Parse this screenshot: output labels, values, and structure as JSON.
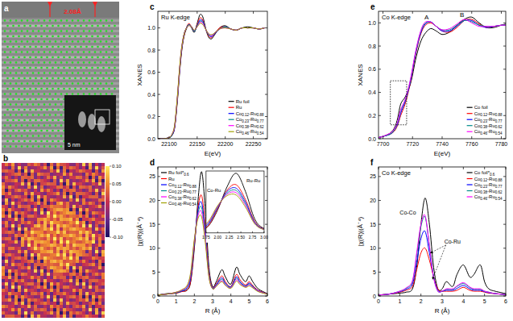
{
  "chart_data": [
    {
      "label": "c",
      "type": "line",
      "title": "Ru K-edge",
      "x_label": "E(eV)",
      "y_label": "XANES",
      "xlim": [
        22080,
        22275
      ],
      "ylim": [
        0,
        1.15
      ],
      "xticks": [
        22100,
        22150,
        22200,
        22250
      ],
      "yticks": [
        {
          "value": 0,
          "label": "0.0"
        },
        0.2,
        0.4,
        0.6,
        0.8,
        {
          "value": 1,
          "label": "1.0"
        }
      ],
      "legend": "lower right",
      "x": [
        22080,
        22090,
        22100,
        22105,
        22110,
        22115,
        22118,
        22121,
        22124,
        22127,
        22130,
        22135,
        22140,
        22145,
        22150,
        22155,
        22160,
        22165,
        22170,
        22175,
        22180,
        22190,
        22200,
        22210,
        22220,
        22230,
        22240,
        22250,
        22260,
        22270
      ],
      "series": [
        {
          "name": "Ru foil",
          "color": "#000000",
          "values": [
            0,
            0,
            0.01,
            0.03,
            0.1,
            0.35,
            0.55,
            0.72,
            0.85,
            0.93,
            0.98,
            1.03,
            1.0,
            0.96,
            1.04,
            1.12,
            1.1,
            1.0,
            0.92,
            0.9,
            0.93,
            1.0,
            1.02,
            0.99,
            0.98,
            1.0,
            1.01,
            1.0,
            0.99,
            1.0
          ]
        },
        {
          "name": "Ru",
          "color": "#ff0000",
          "values": [
            0,
            0,
            0.01,
            0.03,
            0.11,
            0.37,
            0.57,
            0.74,
            0.86,
            0.94,
            0.99,
            1.04,
            1.01,
            0.97,
            1.03,
            1.09,
            1.07,
            0.99,
            0.93,
            0.91,
            0.94,
            1.0,
            1.01,
            0.99,
            0.98,
            1.0,
            1.0,
            1.0,
            0.99,
            1.0
          ]
        },
        {
          "name": "Co0.12-Ru0.88",
          "color": "#0000ff",
          "values": [
            0,
            0,
            0.01,
            0.03,
            0.11,
            0.38,
            0.58,
            0.75,
            0.87,
            0.95,
            0.99,
            1.03,
            1.01,
            0.97,
            1.02,
            1.07,
            1.06,
            0.99,
            0.94,
            0.92,
            0.94,
            0.99,
            1.01,
            0.99,
            0.98,
            1.0,
            1.0,
            1.0,
            0.99,
            1.0
          ]
        },
        {
          "name": "Co0.23-Ru0.77",
          "color": "#008b8b",
          "values": [
            0,
            0,
            0.01,
            0.03,
            0.12,
            0.38,
            0.58,
            0.75,
            0.87,
            0.95,
            0.99,
            1.03,
            1.01,
            0.97,
            1.02,
            1.06,
            1.05,
            0.99,
            0.94,
            0.93,
            0.95,
            0.99,
            1.01,
            0.99,
            0.98,
            1.0,
            1.0,
            1.0,
            0.99,
            1.0
          ]
        },
        {
          "name": "Co0.38-Ru0.62",
          "color": "#ff00ff",
          "values": [
            0,
            0,
            0.01,
            0.04,
            0.12,
            0.39,
            0.59,
            0.76,
            0.88,
            0.95,
            0.99,
            1.02,
            1.01,
            0.98,
            1.01,
            1.05,
            1.04,
            0.99,
            0.95,
            0.93,
            0.95,
            0.99,
            1.0,
            0.99,
            0.98,
            1.0,
            1.0,
            1.0,
            0.99,
            1.0
          ]
        },
        {
          "name": "Co0.46-Ru0.54",
          "color": "#a0a000",
          "values": [
            0,
            0,
            0.01,
            0.04,
            0.13,
            0.4,
            0.6,
            0.77,
            0.88,
            0.95,
            0.99,
            1.02,
            1.01,
            0.98,
            1.01,
            1.04,
            1.03,
            0.99,
            0.95,
            0.94,
            0.95,
            0.99,
            1.0,
            0.99,
            0.98,
            1.0,
            1.0,
            1.0,
            0.99,
            1.0
          ]
        }
      ]
    },
    {
      "label": "d",
      "type": "line",
      "x_label": "R (Å)",
      "y_label": "|χ(R)|(Å⁻⁴)",
      "xlim": [
        0,
        6
      ],
      "ylim": [
        0,
        27
      ],
      "xticks": [
        0,
        1,
        2,
        3,
        4,
        5,
        6
      ],
      "yticks": [
        0,
        5,
        10,
        15,
        20,
        25
      ],
      "legend": "upper left",
      "x": [
        0,
        0.5,
        1.0,
        1.3,
        1.6,
        1.8,
        2.0,
        2.2,
        2.4,
        2.6,
        2.8,
        3.0,
        3.2,
        3.5,
        3.7,
        4.0,
        4.3,
        4.5,
        4.8,
        5.0,
        5.2,
        5.5,
        6.0
      ],
      "series": [
        {
          "name": "Ru foil*0.6",
          "color": "#000000",
          "values": [
            0.2,
            0.5,
            0.6,
            1.0,
            1.2,
            3.0,
            10.0,
            20.0,
            26.0,
            18.0,
            6.0,
            2.0,
            3.0,
            5.5,
            4.0,
            2.5,
            6.0,
            4.5,
            3.0,
            4.2,
            3.0,
            1.5,
            0.5
          ]
        },
        {
          "name": "Ru",
          "color": "#ff0000",
          "values": [
            0.2,
            0.4,
            0.6,
            0.9,
            1.3,
            3.2,
            10.5,
            18.5,
            21.0,
            14.5,
            5.0,
            1.8,
            2.6,
            4.2,
            3.0,
            2.0,
            4.5,
            3.4,
            2.3,
            3.0,
            2.2,
            1.2,
            0.4
          ]
        },
        {
          "name": "Co0.12-Ru0.88",
          "color": "#0000ff",
          "values": [
            0.2,
            0.4,
            0.7,
            1.0,
            1.6,
            3.8,
            11.0,
            18.0,
            19.5,
            13.5,
            4.6,
            1.7,
            2.4,
            3.8,
            2.7,
            1.9,
            4.0,
            3.0,
            2.1,
            2.7,
            2.0,
            1.1,
            0.4
          ]
        },
        {
          "name": "Co0.23-Ru0.77",
          "color": "#008b8b",
          "values": [
            0.2,
            0.4,
            0.7,
            1.1,
            1.8,
            4.2,
            11.3,
            17.3,
            18.5,
            12.7,
            4.3,
            1.6,
            2.2,
            3.5,
            2.5,
            1.8,
            3.7,
            2.8,
            2.0,
            2.5,
            1.9,
            1.0,
            0.4
          ]
        },
        {
          "name": "Co0.38-Ru0.62",
          "color": "#ff00ff",
          "values": [
            0.2,
            0.4,
            0.8,
            1.2,
            2.0,
            4.6,
            11.6,
            16.8,
            17.5,
            12.0,
            4.1,
            1.5,
            2.1,
            3.2,
            2.3,
            1.7,
            3.4,
            2.6,
            1.9,
            2.3,
            1.8,
            1.0,
            0.4
          ]
        },
        {
          "name": "Co0.46-Ru0.54",
          "color": "#a0a000",
          "values": [
            0.2,
            0.4,
            0.8,
            1.3,
            2.2,
            5.0,
            11.9,
            16.2,
            16.5,
            11.2,
            3.9,
            1.5,
            2.0,
            3.0,
            2.2,
            1.6,
            3.1,
            2.4,
            1.8,
            2.1,
            1.7,
            0.9,
            0.4
          ]
        }
      ],
      "inset": {
        "xlim": [
          1.75,
          3.0
        ],
        "ylim": [
          0,
          27
        ],
        "tick_labels": "x",
        "xticks": [
          1.75,
          {
            "value": 2,
            "label": "2.00"
          },
          2.25,
          {
            "value": 2.5,
            "label": "2.50"
          },
          2.75,
          {
            "value": 3,
            "label": "3.00"
          }
        ],
        "annotations": [
          {
            "text": "Ru-Ru",
            "x": 2.62,
            "y": 22
          },
          {
            "text": "Co-Ru",
            "x": 1.77,
            "y": 18
          }
        ]
      }
    },
    {
      "label": "e",
      "type": "line",
      "title": "Co K-edge",
      "x_label": "E(eV)",
      "y_label": "XANES",
      "xlim": [
        7697,
        7783
      ],
      "ylim": [
        0,
        1.1
      ],
      "xticks": [
        7700,
        7720,
        7740,
        7760,
        7780
      ],
      "yticks": [
        {
          "value": 0,
          "label": "0.0"
        },
        0.2,
        0.4,
        0.6,
        0.8,
        {
          "value": 1,
          "label": "1.0"
        }
      ],
      "legend": "lower right",
      "x": [
        7697,
        7700,
        7705,
        7708,
        7710,
        7712,
        7715,
        7718,
        7720,
        7722,
        7725,
        7728,
        7732,
        7736,
        7740,
        7745,
        7750,
        7755,
        7760,
        7765,
        7770,
        7775,
        7780,
        7783
      ],
      "series": [
        {
          "name": "Co foil",
          "color": "#000000",
          "values": [
            0.01,
            0.02,
            0.05,
            0.1,
            0.18,
            0.3,
            0.36,
            0.45,
            0.55,
            0.68,
            0.82,
            0.9,
            0.95,
            0.93,
            0.9,
            0.92,
            0.98,
            1.03,
            1.05,
            1.0,
            0.96,
            0.96,
            0.98,
            0.99
          ]
        },
        {
          "name": "Co0.12-Ru0.88",
          "color": "#ff0000",
          "values": [
            0.01,
            0.02,
            0.04,
            0.07,
            0.12,
            0.2,
            0.3,
            0.45,
            0.58,
            0.72,
            0.88,
            0.97,
            1.0,
            0.97,
            0.93,
            0.92,
            0.96,
            1.02,
            1.03,
            0.99,
            0.96,
            0.97,
            0.98,
            0.98
          ]
        },
        {
          "name": "Co0.23-Ru0.77",
          "color": "#0000ff",
          "values": [
            0.01,
            0.02,
            0.04,
            0.08,
            0.13,
            0.22,
            0.32,
            0.46,
            0.59,
            0.73,
            0.89,
            0.98,
            1.01,
            0.97,
            0.93,
            0.93,
            0.97,
            1.02,
            1.02,
            0.98,
            0.96,
            0.97,
            0.98,
            0.98
          ]
        },
        {
          "name": "Co0.38-Ru0.62",
          "color": "#008b8b",
          "values": [
            0.01,
            0.02,
            0.04,
            0.08,
            0.14,
            0.24,
            0.33,
            0.47,
            0.6,
            0.74,
            0.9,
            0.99,
            1.01,
            0.97,
            0.94,
            0.94,
            0.98,
            1.02,
            1.01,
            0.98,
            0.97,
            0.97,
            0.98,
            0.98
          ]
        },
        {
          "name": "Co0.46-Ru0.54",
          "color": "#ff00ff",
          "values": [
            0.01,
            0.02,
            0.05,
            0.09,
            0.15,
            0.25,
            0.34,
            0.48,
            0.61,
            0.75,
            0.91,
            1.0,
            1.01,
            0.97,
            0.94,
            0.95,
            0.99,
            1.03,
            1.0,
            0.97,
            0.97,
            0.97,
            0.98,
            0.98
          ]
        }
      ],
      "annotations": [
        {
          "text": "A",
          "x": 7728,
          "y": 1.03
        },
        {
          "text": "B",
          "x": 7752,
          "y": 1.05
        }
      ],
      "region": {
        "xlim": [
          7705,
          7716
        ],
        "ylim": [
          0.12,
          0.5
        ]
      }
    },
    {
      "label": "f",
      "type": "line",
      "title": "Co K-edge",
      "x_label": "R (Å)",
      "y_label": "|χ(R)|(Å⁻⁴)",
      "xlim": [
        0,
        6
      ],
      "ylim": [
        0,
        27
      ],
      "xticks": [
        0,
        1,
        2,
        3,
        4,
        5,
        6
      ],
      "yticks": [
        0,
        5,
        10,
        15,
        20,
        25
      ],
      "legend": "upper right",
      "x": [
        0,
        0.5,
        1.0,
        1.3,
        1.6,
        1.8,
        2.0,
        2.2,
        2.4,
        2.6,
        2.8,
        3.0,
        3.2,
        3.5,
        3.7,
        4.0,
        4.3,
        4.5,
        4.8,
        5.0,
        5.2,
        5.5,
        6.0
      ],
      "series": [
        {
          "name": "Co foil*0.6",
          "color": "#000000",
          "values": [
            0.2,
            0.4,
            0.6,
            0.8,
            1.5,
            6.0,
            15.0,
            20.5,
            15.0,
            6.0,
            1.5,
            1.5,
            3.0,
            2.0,
            4.5,
            6.5,
            4.0,
            4.5,
            6.5,
            3.0,
            1.5,
            1.0,
            0.5
          ]
        },
        {
          "name": "Co0.12-Ru0.88",
          "color": "#ff0000",
          "values": [
            0.2,
            0.4,
            0.8,
            1.2,
            2.0,
            5.5,
            9.0,
            10.0,
            7.5,
            4.0,
            1.5,
            1.0,
            1.0,
            1.0,
            1.2,
            1.8,
            1.2,
            1.0,
            1.0,
            0.8,
            0.6,
            0.5,
            0.3
          ]
        },
        {
          "name": "Co0.23-Ru0.77",
          "color": "#0000ff",
          "values": [
            0.2,
            0.4,
            0.9,
            1.4,
            2.5,
            7.0,
            12.0,
            13.5,
            9.0,
            4.0,
            1.2,
            1.0,
            1.2,
            1.2,
            1.6,
            2.2,
            1.5,
            1.2,
            1.2,
            0.9,
            0.7,
            0.5,
            0.3
          ]
        },
        {
          "name": "Co0.38-Ru0.62",
          "color": "#008b8b",
          "values": [
            0.2,
            0.4,
            1.0,
            1.6,
            3.0,
            8.5,
            14.5,
            16.5,
            10.5,
            4.0,
            1.0,
            1.0,
            1.4,
            1.4,
            2.0,
            2.6,
            1.8,
            1.4,
            1.4,
            1.0,
            0.8,
            0.5,
            0.3
          ]
        },
        {
          "name": "Co0.46-Ru0.54",
          "color": "#ff00ff",
          "values": [
            0.2,
            0.4,
            1.0,
            1.7,
            3.2,
            9.0,
            15.0,
            16.8,
            10.5,
            3.8,
            1.0,
            1.0,
            1.5,
            1.5,
            2.1,
            2.8,
            1.9,
            1.5,
            1.5,
            1.0,
            0.8,
            0.5,
            0.3
          ]
        }
      ],
      "annotations": [
        {
          "text": "Co-Co",
          "x": 1.0,
          "y": 17
        },
        {
          "text": "Co-Ru",
          "x": 3.1,
          "y": 11,
          "arrow_to": [
            [
              2.55,
              3.5
            ],
            [
              2.45,
              9
            ]
          ]
        }
      ]
    }
  ],
  "image_panels": [
    {
      "label": "a",
      "annotation": "2.08Å",
      "scale_bar": "5 nm"
    },
    {
      "label": "b",
      "colorbar": {
        "range": [
          -0.1,
          0.1
        ],
        "ticks": [
          {
            "value": 0.1,
            "label": "0.10"
          },
          0.05,
          {
            "value": 0,
            "label": "0.00"
          },
          -0.05,
          {
            "value": -0.1,
            "label": "-0.10"
          }
        ]
      }
    }
  ]
}
